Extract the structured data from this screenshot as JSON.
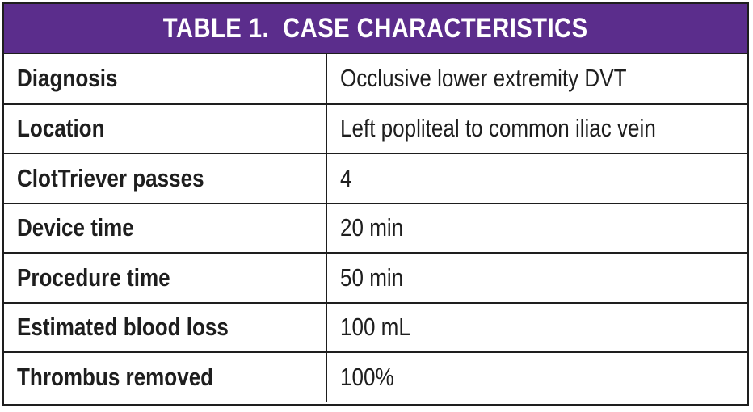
{
  "colors": {
    "header_background": "#5b2d8c",
    "header_text": "#ffffff",
    "border": "#1e1e1e",
    "text": "#1e1e1e"
  },
  "table": {
    "title": "TABLE 1.  CASE CHARACTERISTICS",
    "rows": [
      {
        "label": "Diagnosis",
        "value": "Occlusive lower extremity DVT"
      },
      {
        "label": "Location",
        "value": "Left popliteal to common iliac vein"
      },
      {
        "label": "ClotTriever passes",
        "value": "4"
      },
      {
        "label": "Device time",
        "value": "20 min"
      },
      {
        "label": "Procedure time",
        "value": "50 min"
      },
      {
        "label": "Estimated blood loss",
        "value": "100 mL"
      },
      {
        "label": "Thrombus removed",
        "value": "100%"
      }
    ]
  }
}
